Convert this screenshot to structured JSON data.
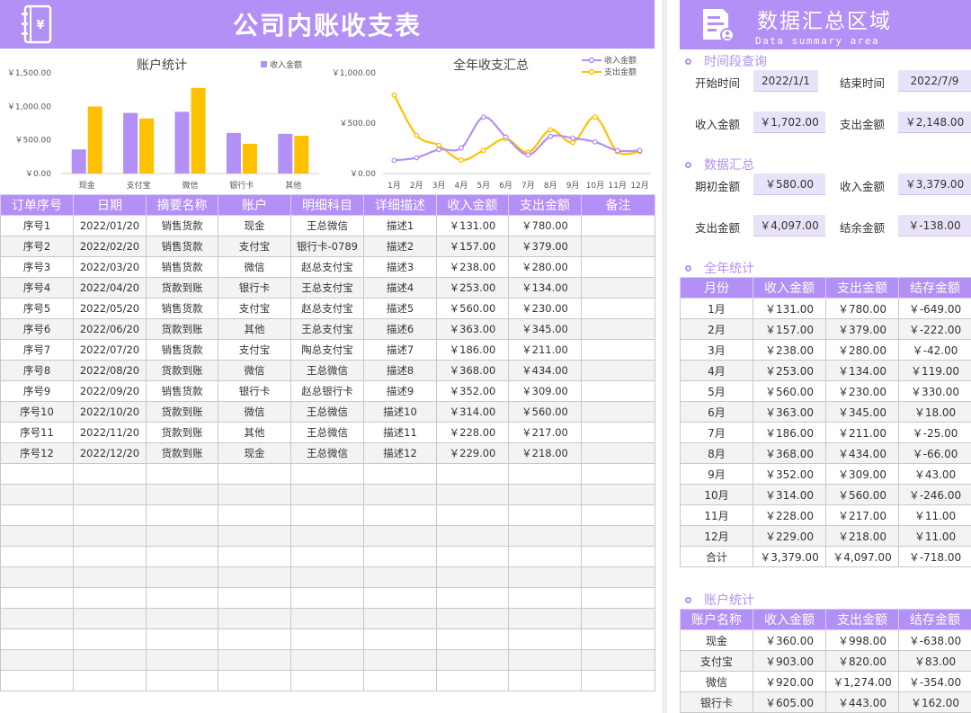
{
  "title": "公司内账收支表",
  "icons": {
    "book": "book-yen-icon",
    "doc": "document-user-icon"
  },
  "colors": {
    "accent": "#b390f5",
    "income": "#b390f5",
    "expense": "#ffc000",
    "expense_line": "#ffc000"
  },
  "chart_data": [
    {
      "type": "bar",
      "title": "账户统计",
      "categories": [
        "现金",
        "支付宝",
        "微信",
        "银行卡",
        "其他"
      ],
      "series": [
        {
          "name": "收入金额",
          "values": [
            360,
            903,
            920,
            605,
            591
          ]
        },
        {
          "values": [
            998,
            820,
            1274,
            443,
            562
          ]
        }
      ],
      "ylim": [
        0,
        1500
      ],
      "yticks": [
        "￥1,500.00",
        "￥1,000.00",
        "￥500.00",
        "￥0.00"
      ],
      "legend": "top-right",
      "grid": false
    },
    {
      "type": "line",
      "title": "全年收支汇总",
      "categories": [
        "1月",
        "2月",
        "3月",
        "4月",
        "5月",
        "6月",
        "7月",
        "8月",
        "9月",
        "10月",
        "11月",
        "12月"
      ],
      "series": [
        {
          "name": "收入金额",
          "values": [
            131,
            157,
            238,
            253,
            560,
            363,
            186,
            368,
            352,
            314,
            228,
            229
          ]
        },
        {
          "name": "支出金额",
          "values": [
            780,
            379,
            280,
            134,
            230,
            345,
            211,
            434,
            309,
            560,
            217,
            218
          ]
        }
      ],
      "ylim": [
        0,
        1000
      ],
      "yticks": [
        "￥1,000.00",
        "￥500.00",
        "￥0.00"
      ],
      "legend": "top-right",
      "grid": false
    }
  ],
  "main_table": {
    "headers": [
      "订单序号",
      "日期",
      "摘要名称",
      "账户",
      "明细科目",
      "详细描述",
      "收入金额",
      "支出金额",
      "备注"
    ],
    "rows": [
      [
        "序号1",
        "2022/01/20",
        "销售货款",
        "现金",
        "王总微信",
        "描述1",
        "￥131.00",
        "￥780.00",
        ""
      ],
      [
        "序号2",
        "2022/02/20",
        "销售货款",
        "支付宝",
        "银行卡-0789",
        "描述2",
        "￥157.00",
        "￥379.00",
        ""
      ],
      [
        "序号3",
        "2022/03/20",
        "销售货款",
        "微信",
        "赵总支付宝",
        "描述3",
        "￥238.00",
        "￥280.00",
        ""
      ],
      [
        "序号4",
        "2022/04/20",
        "货款到账",
        "银行卡",
        "王总支付宝",
        "描述4",
        "￥253.00",
        "￥134.00",
        ""
      ],
      [
        "序号5",
        "2022/05/20",
        "销售货款",
        "支付宝",
        "赵总支付宝",
        "描述5",
        "￥560.00",
        "￥230.00",
        ""
      ],
      [
        "序号6",
        "2022/06/20",
        "货款到账",
        "其他",
        "王总支付宝",
        "描述6",
        "￥363.00",
        "￥345.00",
        ""
      ],
      [
        "序号7",
        "2022/07/20",
        "销售货款",
        "支付宝",
        "陶总支付宝",
        "描述7",
        "￥186.00",
        "￥211.00",
        ""
      ],
      [
        "序号8",
        "2022/08/20",
        "货款到账",
        "微信",
        "王总微信",
        "描述8",
        "￥368.00",
        "￥434.00",
        ""
      ],
      [
        "序号9",
        "2022/09/20",
        "销售货款",
        "银行卡",
        "赵总银行卡",
        "描述9",
        "￥352.00",
        "￥309.00",
        ""
      ],
      [
        "序号10",
        "2022/10/20",
        "货款到账",
        "微信",
        "王总微信",
        "描述10",
        "￥314.00",
        "￥560.00",
        ""
      ],
      [
        "序号11",
        "2022/11/20",
        "货款到账",
        "其他",
        "王总微信",
        "描述11",
        "￥228.00",
        "￥217.00",
        ""
      ],
      [
        "序号12",
        "2022/12/20",
        "货款到账",
        "现金",
        "王总微信",
        "描述12",
        "￥229.00",
        "￥218.00",
        ""
      ]
    ],
    "empty_rows": 11
  },
  "summary": {
    "title_cn": "数据汇总区域",
    "title_en": "Data summary area",
    "period": {
      "title": "时间段查询",
      "start_label": "开始时间",
      "start_value": "2022/1/1",
      "end_label": "结束时间",
      "end_value": "2022/7/9",
      "income_label": "收入金额",
      "income_value": "￥1,702.00",
      "expense_label": "支出金额",
      "expense_value": "￥2,148.00"
    },
    "data_summary": {
      "title": "数据汇总",
      "opening_label": "期初金额",
      "opening_value": "￥580.00",
      "income_label": "收入金额",
      "income_value": "￥3,379.00",
      "expense_label": "支出金额",
      "expense_value": "￥4,097.00",
      "balance_label": "结余金额",
      "balance_value": "￥-138.00"
    },
    "annual": {
      "title": "全年统计",
      "headers": [
        "月份",
        "收入金额",
        "支出金额",
        "结存金额"
      ],
      "rows": [
        [
          "1月",
          "￥131.00",
          "￥780.00",
          "￥-649.00"
        ],
        [
          "2月",
          "￥157.00",
          "￥379.00",
          "￥-222.00"
        ],
        [
          "3月",
          "￥238.00",
          "￥280.00",
          "￥-42.00"
        ],
        [
          "4月",
          "￥253.00",
          "￥134.00",
          "￥119.00"
        ],
        [
          "5月",
          "￥560.00",
          "￥230.00",
          "￥330.00"
        ],
        [
          "6月",
          "￥363.00",
          "￥345.00",
          "￥18.00"
        ],
        [
          "7月",
          "￥186.00",
          "￥211.00",
          "￥-25.00"
        ],
        [
          "8月",
          "￥368.00",
          "￥434.00",
          "￥-66.00"
        ],
        [
          "9月",
          "￥352.00",
          "￥309.00",
          "￥43.00"
        ],
        [
          "10月",
          "￥314.00",
          "￥560.00",
          "￥-246.00"
        ],
        [
          "11月",
          "￥228.00",
          "￥217.00",
          "￥11.00"
        ],
        [
          "12月",
          "￥229.00",
          "￥218.00",
          "￥11.00"
        ],
        [
          "合计",
          "￥3,379.00",
          "￥4,097.00",
          "￥-718.00"
        ]
      ]
    },
    "accounts": {
      "title": "账户统计",
      "headers": [
        "账户名称",
        "收入金额",
        "支出金额",
        "结存金额"
      ],
      "rows": [
        [
          "现金",
          "￥360.00",
          "￥998.00",
          "￥-638.00"
        ],
        [
          "支付宝",
          "￥903.00",
          "￥820.00",
          "￥83.00"
        ],
        [
          "微信",
          "￥920.00",
          "￥1,274.00",
          "￥-354.00"
        ],
        [
          "银行卡",
          "￥605.00",
          "￥443.00",
          "￥162.00"
        ]
      ]
    }
  }
}
